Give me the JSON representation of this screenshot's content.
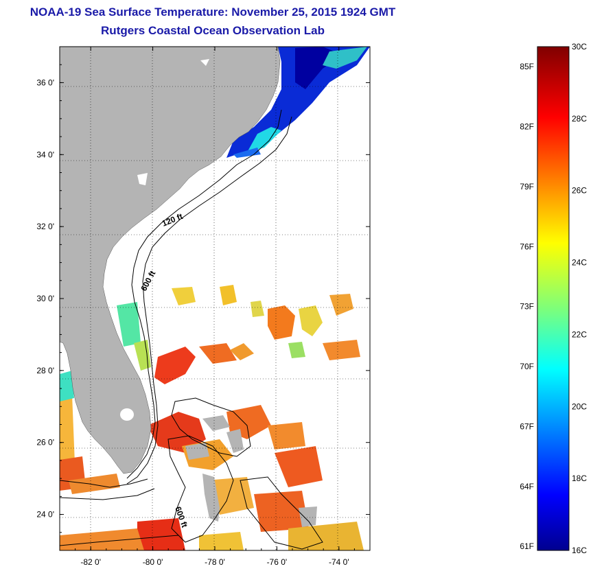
{
  "title_line1": "NOAA-19 Sea Surface Temperature:  November 25, 2015 1924 GMT",
  "title_line2": "Rutgers Coastal Ocean Observation Lab",
  "map": {
    "lon_range": [
      -83,
      -73
    ],
    "lat_range": [
      23,
      37
    ],
    "lat_ticks": [
      {
        "value": 36,
        "label": "36 0'"
      },
      {
        "value": 34,
        "label": "34 0'"
      },
      {
        "value": 32,
        "label": "32 0'"
      },
      {
        "value": 30,
        "label": "30 0'"
      },
      {
        "value": 28,
        "label": "28 0'"
      },
      {
        "value": 26,
        "label": "26 0'"
      },
      {
        "value": 24,
        "label": "24 0'"
      }
    ],
    "lon_ticks": [
      {
        "value": -82,
        "label": "-82 0'"
      },
      {
        "value": -80,
        "label": "-80 0'"
      },
      {
        "value": -78,
        "label": "-78 0'"
      },
      {
        "value": -76,
        "label": "-76 0'"
      },
      {
        "value": -74,
        "label": "-74 0'"
      }
    ],
    "contour_labels": [
      "120 ft",
      "600 ft",
      "600 ft"
    ],
    "colors": {
      "land": "#b4b4b4",
      "ocean": "#ffffff",
      "contour": "#000000"
    }
  },
  "colorbar": {
    "range_c": [
      16,
      30
    ],
    "fahrenheit_labels": [
      "85F",
      "82F",
      "79F",
      "76F",
      "73F",
      "70F",
      "67F",
      "64F",
      "61F"
    ],
    "celsius_labels": [
      "30C",
      "28C",
      "26C",
      "24C",
      "22C",
      "20C",
      "18C",
      "16C"
    ]
  }
}
